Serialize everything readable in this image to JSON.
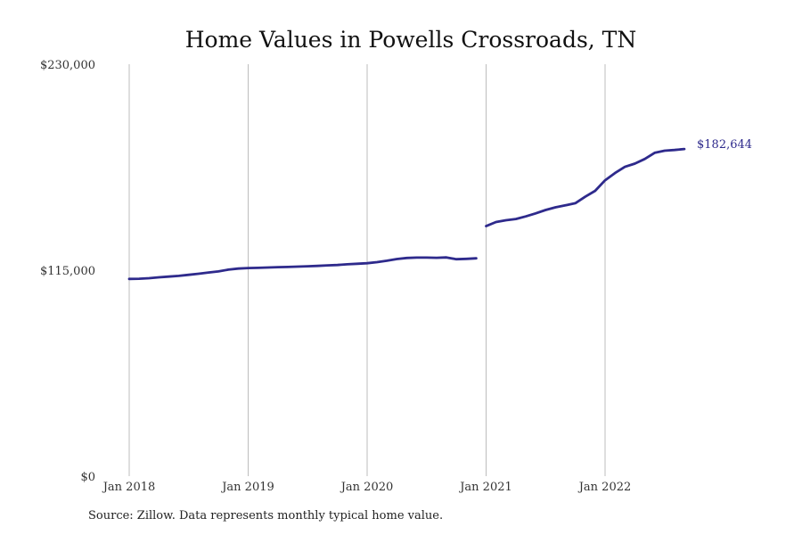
{
  "chart_data": {
    "type": "line",
    "title": "Home Values in Powells Crossroads, TN",
    "xlabel": "",
    "ylabel": "",
    "ylim": [
      0,
      230000
    ],
    "y_ticks": [
      {
        "value": 0,
        "label": "$0"
      },
      {
        "value": 115000,
        "label": "$115,000"
      },
      {
        "value": 230000,
        "label": "$230,000"
      }
    ],
    "x_ticks": [
      {
        "date": "2018-01",
        "label": "Jan 2018"
      },
      {
        "date": "2019-01",
        "label": "Jan 2019"
      },
      {
        "date": "2020-01",
        "label": "Jan 2020"
      },
      {
        "date": "2021-01",
        "label": "Jan 2021"
      },
      {
        "date": "2022-01",
        "label": "Jan 2022"
      }
    ],
    "xlim": [
      "2018-01",
      "2022-10"
    ],
    "grid": "vertical",
    "series": [
      {
        "color": "#2e2a8c",
        "segments": [
          [
            {
              "date": "2018-01",
              "value": 110100
            },
            {
              "date": "2018-02",
              "value": 110200
            },
            {
              "date": "2018-03",
              "value": 110500
            },
            {
              "date": "2018-04",
              "value": 111000
            },
            {
              "date": "2018-05",
              "value": 111400
            },
            {
              "date": "2018-06",
              "value": 111800
            },
            {
              "date": "2018-07",
              "value": 112400
            },
            {
              "date": "2018-08",
              "value": 113000
            },
            {
              "date": "2018-09",
              "value": 113700
            },
            {
              "date": "2018-10",
              "value": 114300
            },
            {
              "date": "2018-11",
              "value": 115300
            },
            {
              "date": "2018-12",
              "value": 115900
            },
            {
              "date": "2019-01",
              "value": 116200
            },
            {
              "date": "2019-02",
              "value": 116300
            },
            {
              "date": "2019-03",
              "value": 116500
            },
            {
              "date": "2019-04",
              "value": 116700
            },
            {
              "date": "2019-05",
              "value": 116800
            },
            {
              "date": "2019-06",
              "value": 117000
            },
            {
              "date": "2019-07",
              "value": 117200
            },
            {
              "date": "2019-08",
              "value": 117400
            },
            {
              "date": "2019-09",
              "value": 117700
            },
            {
              "date": "2019-10",
              "value": 117900
            },
            {
              "date": "2019-11",
              "value": 118300
            },
            {
              "date": "2019-12",
              "value": 118600
            },
            {
              "date": "2020-01",
              "value": 118900
            },
            {
              "date": "2020-02",
              "value": 119500
            },
            {
              "date": "2020-03",
              "value": 120300
            },
            {
              "date": "2020-04",
              "value": 121200
            },
            {
              "date": "2020-05",
              "value": 121800
            },
            {
              "date": "2020-06",
              "value": 122000
            },
            {
              "date": "2020-07",
              "value": 122000
            },
            {
              "date": "2020-08",
              "value": 121900
            },
            {
              "date": "2020-09",
              "value": 122100
            },
            {
              "date": "2020-10",
              "value": 121100
            },
            {
              "date": "2020-11",
              "value": 121300
            },
            {
              "date": "2020-12",
              "value": 121600
            }
          ],
          [
            {
              "date": "2021-01",
              "value": 139600
            },
            {
              "date": "2021-02",
              "value": 141900
            },
            {
              "date": "2021-03",
              "value": 142900
            },
            {
              "date": "2021-04",
              "value": 143600
            },
            {
              "date": "2021-05",
              "value": 145000
            },
            {
              "date": "2021-06",
              "value": 146700
            },
            {
              "date": "2021-07",
              "value": 148600
            },
            {
              "date": "2021-08",
              "value": 150100
            },
            {
              "date": "2021-09",
              "value": 151200
            },
            {
              "date": "2021-10",
              "value": 152400
            },
            {
              "date": "2021-11",
              "value": 156000
            },
            {
              "date": "2021-12",
              "value": 159300
            },
            {
              "date": "2022-01",
              "value": 165200
            },
            {
              "date": "2022-02",
              "value": 169200
            },
            {
              "date": "2022-03",
              "value": 172700
            },
            {
              "date": "2022-04",
              "value": 174500
            },
            {
              "date": "2022-05",
              "value": 177100
            },
            {
              "date": "2022-06",
              "value": 180500
            },
            {
              "date": "2022-07",
              "value": 181700
            },
            {
              "date": "2022-08",
              "value": 182100
            },
            {
              "date": "2022-09",
              "value": 182644
            }
          ]
        ],
        "end_label": "$182,644"
      }
    ]
  },
  "source": "Source: Zillow. Data represents monthly typical home value."
}
